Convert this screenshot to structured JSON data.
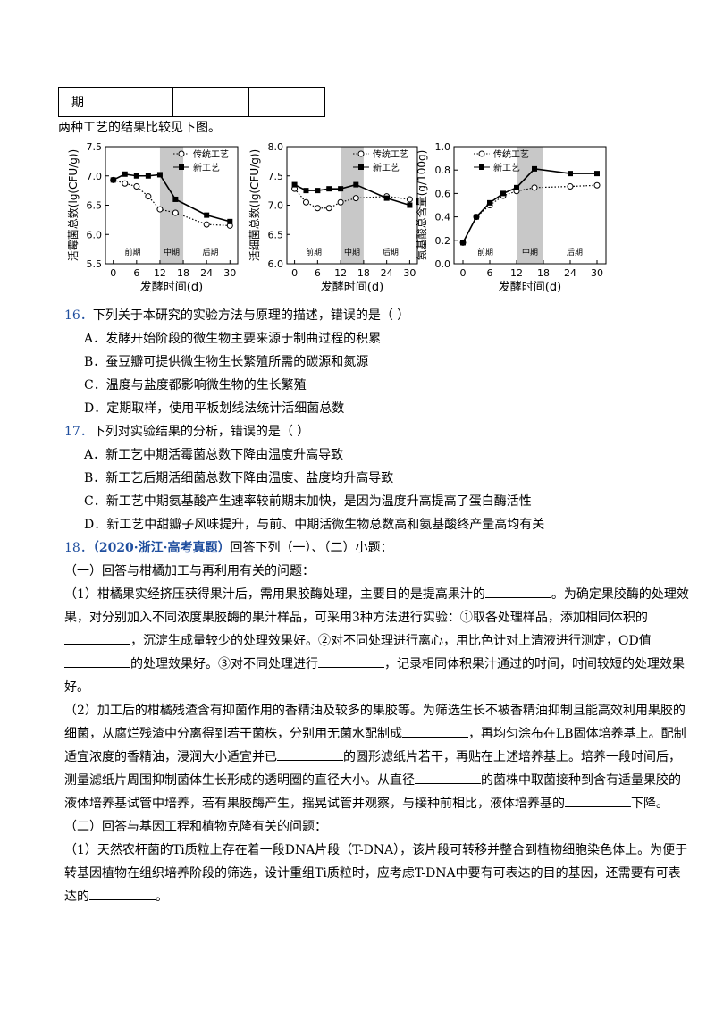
{
  "table": {
    "rows": [
      [
        "期"
      ]
    ]
  },
  "intro": "两种工艺的结果比较见下图。",
  "chart_data": [
    {
      "type": "line",
      "ylabel": "活霉菌总数(lg(CFU/g))",
      "xlabel": "发酵时间(d)",
      "x": [
        0,
        3,
        6,
        9,
        12,
        16,
        24,
        30
      ],
      "xlim": [
        -2,
        32
      ],
      "xticks": [
        0,
        6,
        12,
        18,
        24,
        30
      ],
      "ylim": [
        5.5,
        7.5
      ],
      "yticks": [
        5.5,
        {
          "value": 6,
          "label": "6.0"
        },
        6.5,
        {
          "value": 7,
          "label": "7.0"
        },
        7.5
      ],
      "shaded_xrange": [
        12,
        18
      ],
      "phase_labels": [
        "前期",
        "中期",
        "后期"
      ],
      "series": [
        {
          "name": "传统工艺",
          "color": "#000000",
          "marker": "open-circle",
          "linestyle": "dotted",
          "values": [
            6.93,
            6.87,
            6.82,
            6.65,
            6.43,
            6.37,
            6.17,
            6.15
          ]
        },
        {
          "name": "新工艺",
          "color": "#000000",
          "marker": "filled-square",
          "linestyle": "solid",
          "values": [
            6.93,
            7.03,
            7.0,
            7.0,
            7.02,
            6.6,
            6.33,
            6.22
          ]
        }
      ]
    },
    {
      "type": "line",
      "ylabel": "活细菌总数(lg(CFU/g))",
      "xlabel": "发酵时间(d)",
      "x": [
        0,
        3,
        6,
        9,
        12,
        16,
        24,
        30
      ],
      "xlim": [
        -2,
        32
      ],
      "xticks": [
        0,
        6,
        12,
        18,
        24,
        30
      ],
      "ylim": [
        6,
        8
      ],
      "yticks": [
        {
          "value": 6,
          "label": "6.0"
        },
        6.5,
        {
          "value": 7,
          "label": "7.0"
        },
        7.5,
        {
          "value": 8,
          "label": "8.0"
        }
      ],
      "shaded_xrange": [
        12,
        18
      ],
      "phase_labels": [
        "前期",
        "中期",
        "后期"
      ],
      "series": [
        {
          "name": "传统工艺",
          "color": "#000000",
          "marker": "open-circle",
          "linestyle": "dotted",
          "values": [
            7.28,
            7.05,
            6.95,
            6.95,
            7.05,
            7.12,
            7.15,
            7.1
          ]
        },
        {
          "name": "新工艺",
          "color": "#000000",
          "marker": "filled-square",
          "linestyle": "solid",
          "values": [
            7.35,
            7.25,
            7.25,
            7.28,
            7.28,
            7.35,
            7.12,
            7.0
          ]
        }
      ]
    },
    {
      "type": "line",
      "ylabel": "氨基酸总含量(g/100g)",
      "xlabel": "发酵时间(d)",
      "x": [
        0,
        3,
        6,
        9,
        12,
        16,
        24,
        30
      ],
      "xlim": [
        -2,
        32
      ],
      "xticks": [
        0,
        6,
        12,
        18,
        24,
        30
      ],
      "ylim": [
        0,
        1
      ],
      "yticks": [
        {
          "value": 0,
          "label": "0.0"
        },
        0.2,
        0.4,
        0.6,
        0.8,
        {
          "value": 1,
          "label": "1.0"
        }
      ],
      "shaded_xrange": [
        12,
        18
      ],
      "phase_labels": [
        "前期",
        "中期",
        "后期"
      ],
      "series": [
        {
          "name": "传统工艺",
          "color": "#000000",
          "marker": "open-circle",
          "linestyle": "dotted",
          "values": [
            0.18,
            0.4,
            0.5,
            0.58,
            0.62,
            0.65,
            0.66,
            0.67
          ]
        },
        {
          "name": "新工艺",
          "color": "#000000",
          "marker": "filled-square",
          "linestyle": "solid",
          "values": [
            0.18,
            0.4,
            0.52,
            0.6,
            0.65,
            0.81,
            0.77,
            0.77
          ]
        }
      ]
    }
  ],
  "questions": [
    {
      "number": "16．",
      "stem": "下列关于本研究的实验方法与原理的描述，错误的是（    ）",
      "options": [
        "A．发酵开始阶段的微生物主要来源于制曲过程的积累",
        "B．蚕豆瓣可提供微生物生长繁殖所需的碳源和氮源",
        "C．温度与盐度都影响微生物的生长繁殖",
        "D．定期取样，使用平板划线法统计活细菌总数"
      ]
    },
    {
      "number": "17．",
      "stem": "下列对实验结果的分析，错误的是（    ）",
      "options": [
        "A．新工艺中期活霉菌总数下降由温度升高导致",
        "B．新工艺后期活细菌总数下降由温度、盐度均升高导致",
        "C．新工艺中期氨基酸产生速率较前期末加快，是因为温度升高提高了蛋白酶活性",
        "D．新工艺中甜瓣子风味提升，与前、中期活微生物总数高和氨基酸终产量高均有关"
      ]
    }
  ],
  "q18": {
    "number": "18．",
    "source": "（2020·浙江·高考真题）",
    "stem": "回答下列（一）、（二）小题：",
    "paragraphs": [
      [
        "（一）回答与柑橘加工与再利用有关的问题："
      ],
      [
        "（1）柑橘果实经挤压获得果汁后，需用果胶酶处理，主要目的是提高果汁的",
        "。为确定果胶酶的处理效果，对分别加入不同浓度果胶酶的果汁样品，可采用3种方法进行实验：①取各处理样品，添加相同体积的",
        "，沉淀生成量较少的处理效果好。②对不同处理进行离心，用比色计对上清液进行测定，OD值",
        "的处理效果好。③对不同处理进行",
        "，记录相同体积果汁通过的时间，时间较短的处理效果好。"
      ],
      [
        "（2）加工后的柑橘残渣含有抑菌作用的香精油及较多的果胶等。为筛选生长不被香精油抑制且能高效利用果胶的细菌，从腐烂残渣中分离得到若干菌株，分别用无菌水配制成",
        "，再均匀涂布在LB固体培养基上。配制适宜浓度的香精油，浸润大小适宜并已",
        "的圆形滤纸片若干，再贴在上述培养基上。培养一段时间后，测量滤纸片周围抑制菌体生长形成的透明圈的直径大小。从直径",
        "的菌株中取菌接种到含有适量果胶的液体培养基试管中培养，若有果胶酶产生，摇晃试管并观察，与接种前相比，液体培养基的",
        "下降。"
      ],
      [
        "（二）回答与基因工程和植物克隆有关的问题："
      ],
      [
        "（1）天然农杆菌的Ti质粒上存在着一段DNA片段（T-DNA），该片段可转移并整合到植物细胞染色体上。为便于转基因植物在组织培养阶段的筛选，设计重组Ti质粒时，应考虑T-DNA中要有可表达的目的基因，还需要有可表达的",
        "。"
      ]
    ]
  }
}
